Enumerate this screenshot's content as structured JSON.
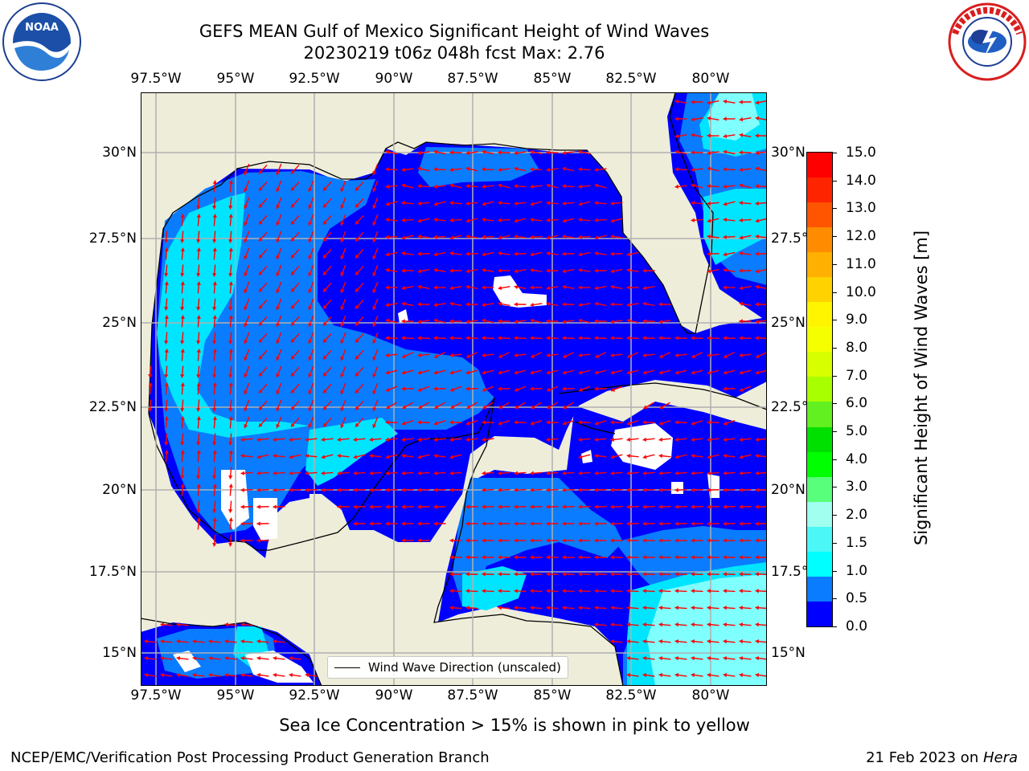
{
  "title": {
    "line1": "GEFS MEAN Gulf of Mexico Significant Height of Wind Waves",
    "line2": "20230219 t06z 048h fcst   Max: 2.76"
  },
  "logos": {
    "left": "NOAA",
    "right": "NATIONAL WEATHER SERVICE"
  },
  "map": {
    "lon_ticks": [
      "97.5°W",
      "95°W",
      "92.5°W",
      "90°W",
      "87.5°W",
      "85°W",
      "82.5°W",
      "80°W"
    ],
    "lat_ticks": [
      "30°N",
      "27.5°N",
      "25°N",
      "22.5°N",
      "20°N",
      "17.5°N",
      "15°N"
    ],
    "legend_label": "Wind Wave Direction (unscaled)",
    "colors": {
      "land": "#eeedda",
      "ocean_0_05": "#0000ff",
      "ocean_05_10": "#0a7cff",
      "ocean_10_15": "#00e5ff",
      "ocean_15_20": "#3ef4f4",
      "ocean_20_25": "#80ffff",
      "arrows": "#ff0000",
      "grid": "#b0b0b0"
    }
  },
  "colorbar": {
    "label": "Significant Height of Wind Waves [m]",
    "ticks": [
      "15.0",
      "14.0",
      "13.0",
      "12.0",
      "11.0",
      "10.0",
      "9.0",
      "8.0",
      "7.0",
      "6.0",
      "5.0",
      "4.0",
      "3.0",
      "2.0",
      "1.5",
      "1.0",
      "0.5",
      "0.0"
    ],
    "colors": [
      "#ff0000",
      "#ff2400",
      "#ff5500",
      "#ff8c00",
      "#ffb000",
      "#ffd200",
      "#fff500",
      "#f5ff00",
      "#d7ff00",
      "#a8ff00",
      "#62f020",
      "#00e000",
      "#00ff00",
      "#58ff7a",
      "#a0ffee",
      "#4cf7f7",
      "#00ffff",
      "#0a7cff",
      "#0000ff"
    ]
  },
  "footer": {
    "ice_note": "Sea Ice Concentration > 15% is shown in pink to yellow",
    "branch": "NCEP/EMC/Verification Post Processing Product Generation Branch",
    "date": "21 Feb 2023 on ",
    "machine": "Hera"
  }
}
